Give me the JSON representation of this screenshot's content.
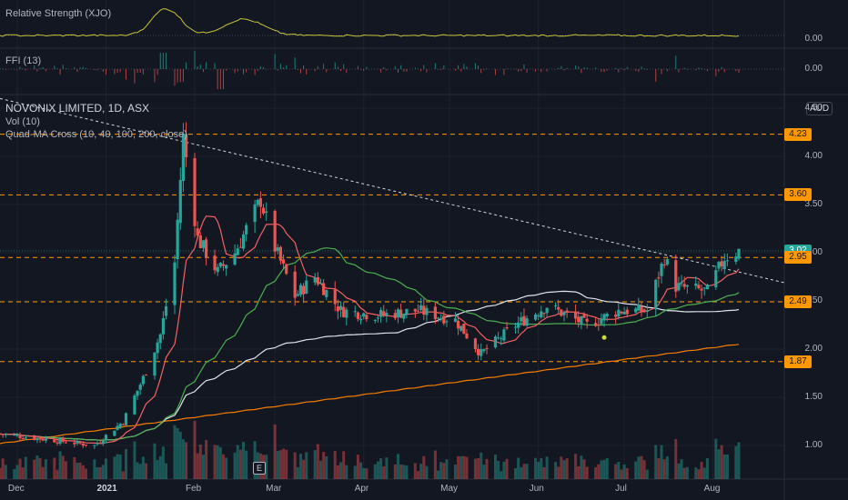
{
  "panes": {
    "rs": {
      "label": "Relative Strength (XJO)",
      "value": "0.00"
    },
    "ffi": {
      "label": "FFI (13)",
      "value": "0.00"
    },
    "main": {
      "title": "NOVONIX LIMITED, 1D, ASX",
      "vol_label": "Vol (10)",
      "ma_label": "Quad-MA Cross (10, 40, 100, 200, close)",
      "currency": "AUD"
    }
  },
  "price_axis": {
    "ticks": [
      "4.50",
      "4.00",
      "3.50",
      "3.00",
      "2.50",
      "2.00",
      "1.50",
      "1.00"
    ]
  },
  "price_tags": [
    {
      "label": "4.23",
      "value": 4.23,
      "color": "orange"
    },
    {
      "label": "3.60",
      "value": 3.6,
      "color": "orange"
    },
    {
      "label": "3.02",
      "value": 3.02,
      "color": "green"
    },
    {
      "label": "2.95",
      "value": 2.95,
      "color": "orange"
    },
    {
      "label": "2.49",
      "value": 2.49,
      "color": "orange"
    },
    {
      "label": "1.87",
      "value": 1.87,
      "color": "orange"
    }
  ],
  "time_axis": {
    "ticks": [
      "Dec",
      "2021",
      "Feb",
      "Mar",
      "Apr",
      "May",
      "Jun",
      "Jul",
      "Aug"
    ]
  },
  "event_marker": "E",
  "colors": {
    "background": "#131722",
    "up": "#26a69a",
    "down": "#ef5350",
    "ma10": "#f06262",
    "ma40": "#4caf50",
    "ma100": "#e0e3eb",
    "ma200": "#f57c00",
    "levels": "#ff9800",
    "rs_line": "#c8c43a"
  },
  "chart_data": {
    "type": "candlestick",
    "title": "NOVONIX LIMITED, 1D, ASX",
    "ylim": [
      0.75,
      4.6
    ],
    "horizontal_levels": [
      4.23,
      3.6,
      2.95,
      2.49,
      1.87
    ],
    "trendline": {
      "from": {
        "date": "2020-11-25",
        "price": 4.6
      },
      "to": {
        "date": "2021-08-10",
        "price": 2.8
      }
    },
    "close_anchors": [
      {
        "date": "2020-11-25",
        "close": 1.12
      },
      {
        "date": "2020-12-15",
        "close": 1.05
      },
      {
        "date": "2020-12-28",
        "close": 1.0
      },
      {
        "date": "2021-01-07",
        "close": 1.25
      },
      {
        "date": "2021-01-14",
        "close": 1.7
      },
      {
        "date": "2021-01-20",
        "close": 2.15
      },
      {
        "date": "2021-01-25",
        "close": 2.9
      },
      {
        "date": "2021-01-28",
        "close": 4.2
      },
      {
        "date": "2021-02-02",
        "close": 3.15
      },
      {
        "date": "2021-02-09",
        "close": 2.8
      },
      {
        "date": "2021-02-15",
        "close": 3.0
      },
      {
        "date": "2021-02-24",
        "close": 3.55
      },
      {
        "date": "2021-03-01",
        "close": 3.05
      },
      {
        "date": "2021-03-08",
        "close": 2.55
      },
      {
        "date": "2021-03-15",
        "close": 2.75
      },
      {
        "date": "2021-03-24",
        "close": 2.4
      },
      {
        "date": "2021-04-06",
        "close": 2.35
      },
      {
        "date": "2021-04-20",
        "close": 2.4
      },
      {
        "date": "2021-05-03",
        "close": 2.3
      },
      {
        "date": "2021-05-12",
        "close": 1.95
      },
      {
        "date": "2021-05-24",
        "close": 2.25
      },
      {
        "date": "2021-06-04",
        "close": 2.45
      },
      {
        "date": "2021-06-18",
        "close": 2.25
      },
      {
        "date": "2021-06-29",
        "close": 2.4
      },
      {
        "date": "2021-07-09",
        "close": 2.4
      },
      {
        "date": "2021-07-15",
        "close": 2.95
      },
      {
        "date": "2021-07-19",
        "close": 2.65
      },
      {
        "date": "2021-07-30",
        "close": 2.6
      },
      {
        "date": "2021-08-05",
        "close": 2.95
      },
      {
        "date": "2021-08-10",
        "close": 3.02
      }
    ],
    "ma_series": [
      {
        "name": "10",
        "color": "#f06262"
      },
      {
        "name": "40",
        "color": "#4caf50"
      },
      {
        "name": "100",
        "color": "#e0e3eb"
      },
      {
        "name": "200",
        "color": "#f57c00"
      }
    ]
  }
}
